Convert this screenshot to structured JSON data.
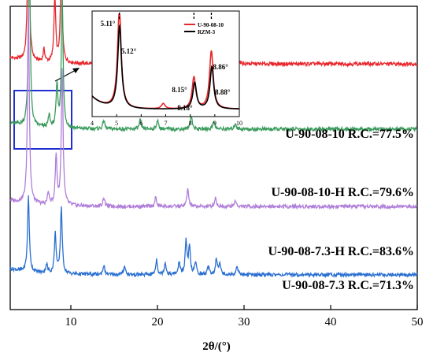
{
  "chart_data": {
    "type": "line",
    "xlabel": "2θ/(°)",
    "ylabel": "",
    "xlim": [
      3,
      50
    ],
    "xticks": [
      10,
      20,
      30,
      40,
      50
    ],
    "grid": false,
    "series": [
      {
        "name": "U-90-08-10",
        "label": "U-90-08-10   R.C.=77.5%",
        "color": "#e8262c",
        "baseline": 0.81,
        "peaks": [
          [
            5.1,
            0.55
          ],
          [
            6.9,
            0.04
          ],
          [
            8.15,
            0.22
          ],
          [
            8.9,
            0.33
          ],
          [
            13.7,
            0.04
          ],
          [
            16.0,
            0.03
          ],
          [
            19.9,
            0.05
          ],
          [
            20.8,
            0.05
          ],
          [
            21.6,
            0.03
          ],
          [
            22.6,
            0.04
          ],
          [
            23.3,
            0.13
          ],
          [
            23.7,
            0.11
          ],
          [
            24.3,
            0.04
          ],
          [
            26.0,
            0.04
          ],
          [
            26.9,
            0.05
          ],
          [
            27.2,
            0.04
          ],
          [
            29.3,
            0.03
          ]
        ]
      },
      {
        "name": "U-90-08-10-H",
        "label": "U-90-08-10-H  R.C.=79.6%",
        "color": "#3a9b5c",
        "baseline": 0.595,
        "peaks": [
          [
            5.2,
            0.62
          ],
          [
            7.5,
            0.04
          ],
          [
            8.4,
            0.14
          ],
          [
            9.0,
            0.44
          ],
          [
            13.8,
            0.03
          ],
          [
            18.0,
            0.03
          ],
          [
            20.0,
            0.03
          ],
          [
            23.9,
            0.05
          ],
          [
            26.5,
            0.03
          ],
          [
            29.0,
            0.02
          ]
        ]
      },
      {
        "name": "U-90-08-7.3-H",
        "label": "U-90-08-7.3-H  R.C.=83.6%",
        "color": "#b07fd9",
        "baseline": 0.34,
        "peaks": [
          [
            5.1,
            0.65
          ],
          [
            7.4,
            0.04
          ],
          [
            8.3,
            0.16
          ],
          [
            9.0,
            0.45
          ],
          [
            13.8,
            0.03
          ],
          [
            19.8,
            0.03
          ],
          [
            23.5,
            0.06
          ],
          [
            26.7,
            0.03
          ],
          [
            29.0,
            0.02
          ]
        ]
      },
      {
        "name": "U-90-08-7.3",
        "label": "U-90-08-7.3  R.C.=71.3%",
        "color": "#2a6fd1",
        "baseline": 0.115,
        "peaks": [
          [
            5.1,
            0.25
          ],
          [
            7.2,
            0.03
          ],
          [
            8.2,
            0.13
          ],
          [
            8.9,
            0.22
          ],
          [
            13.8,
            0.03
          ],
          [
            16.2,
            0.03
          ],
          [
            19.9,
            0.05
          ],
          [
            20.9,
            0.04
          ],
          [
            22.5,
            0.04
          ],
          [
            23.3,
            0.11
          ],
          [
            23.7,
            0.09
          ],
          [
            24.4,
            0.04
          ],
          [
            25.9,
            0.03
          ],
          [
            26.8,
            0.05
          ],
          [
            27.2,
            0.04
          ],
          [
            29.2,
            0.03
          ]
        ]
      }
    ],
    "inset": {
      "xlim": [
        4,
        10
      ],
      "xticks": [
        4,
        5,
        6,
        7,
        8,
        9,
        10
      ],
      "legend": [
        "U-90-08-10",
        "RZM-3"
      ],
      "legend_colors": [
        "#e8262c",
        "#000000"
      ],
      "series": [
        {
          "name": "U-90-08-10",
          "color": "#e8262c",
          "peaks": [
            [
              5.11,
              0.93
            ],
            [
              6.9,
              0.05
            ],
            [
              8.15,
              0.3
            ],
            [
              8.86,
              0.55
            ]
          ]
        },
        {
          "name": "RZM-3",
          "color": "#000000",
          "peaks": [
            [
              5.12,
              0.78
            ],
            [
              8.18,
              0.25
            ],
            [
              8.88,
              0.4
            ]
          ]
        }
      ],
      "annotations": [
        {
          "text": "5.11°",
          "x": 5.11,
          "color": "#000000"
        },
        {
          "text": "5.12°",
          "x": 5.12,
          "color": "#000000"
        },
        {
          "text": "8.15°",
          "x": 8.15,
          "color": "#000000"
        },
        {
          "text": "8.18°",
          "x": 8.18,
          "color": "#000000"
        },
        {
          "text": "8.86°",
          "x": 8.86,
          "color": "#000000"
        },
        {
          "text": "8.88°",
          "x": 8.88,
          "color": "#000000"
        }
      ]
    },
    "highlight_box_color": "#1f2fd1"
  }
}
